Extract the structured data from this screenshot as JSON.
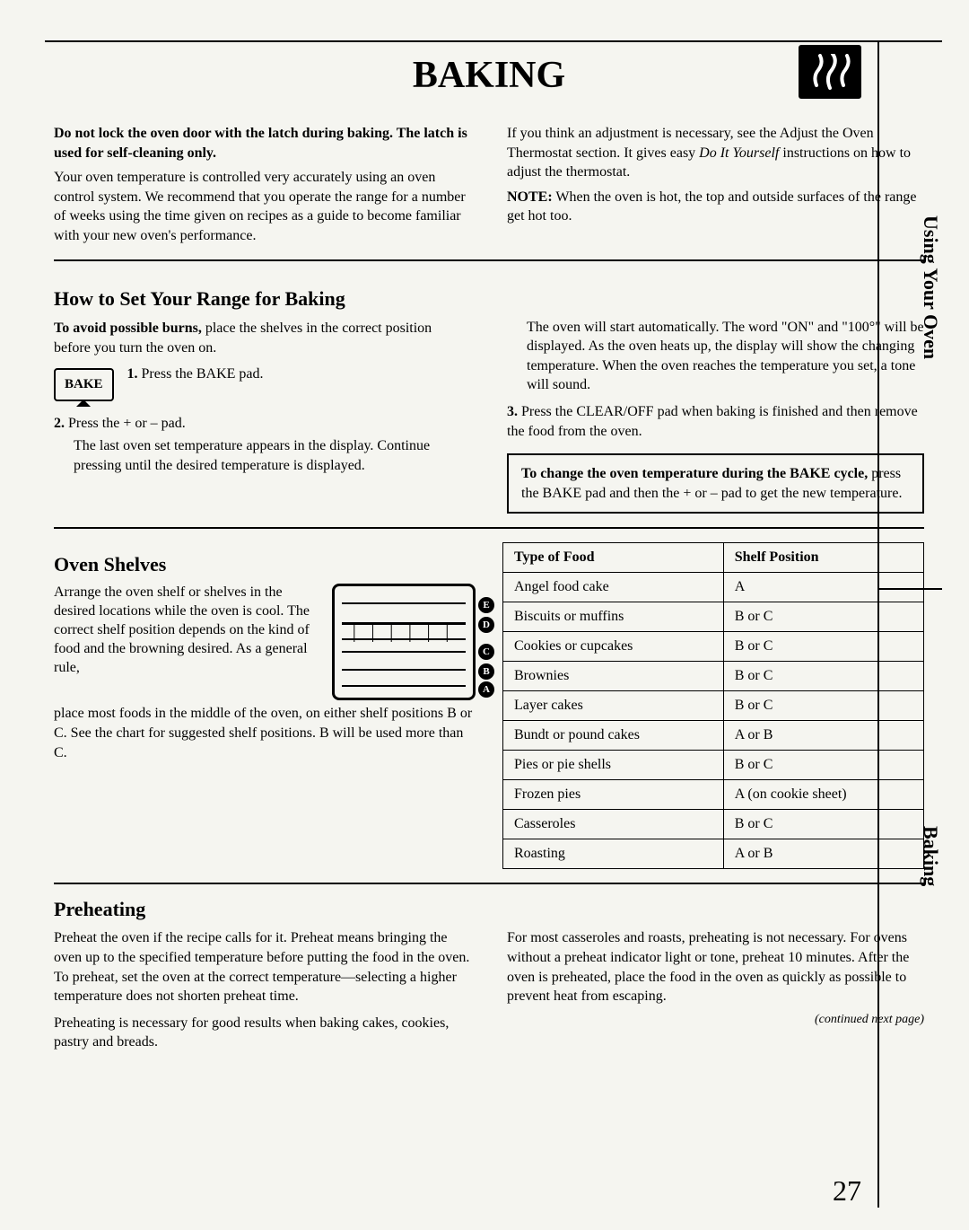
{
  "title": "BAKING",
  "side_tabs": {
    "tab1": "Using Your Oven",
    "tab2": "Baking"
  },
  "intro": {
    "left_bold": "Do not lock the oven door with the latch during baking. The latch is used for self-cleaning only.",
    "left_para": "Your oven temperature is controlled very accurately using an oven control system. We recommend that you operate the range for a number of weeks using the time given on recipes as a guide to become familiar with your new oven's performance.",
    "right_para1_prefix": "If you think an adjustment is necessary, see the Adjust the Oven Thermostat section. It gives easy ",
    "right_para1_italic": "Do It Yourself",
    "right_para1_suffix": " instructions on how to adjust the thermostat.",
    "right_note_label": "NOTE:",
    "right_note_text": " When the oven is hot, the top and outside surfaces of the range get hot too."
  },
  "howto": {
    "heading": "How to Set Your Range for Baking",
    "avoid_burns_bold": "To avoid possible burns,",
    "avoid_burns_rest": " place the shelves in the correct position before you turn the oven on.",
    "step1_num": "1.",
    "step1_text": " Press the BAKE pad.",
    "bake_label": "BAKE",
    "step2_num": "2.",
    "step2_text": " Press the + or – pad.",
    "step2_para": "The last oven set temperature appears in the display. Continue pressing until the desired temperature is displayed.",
    "right_para": "The oven will start automatically. The word \"ON\" and \"100°\" will be displayed. As the oven heats up, the display will show the changing temperature. When the oven reaches the temperature you set, a tone will sound.",
    "step3_num": "3.",
    "step3_text": " Press the CLEAR/OFF pad when baking is finished and then remove the food from the oven.",
    "change_temp_bold": "To change the oven temperature during the BAKE cycle,",
    "change_temp_rest": " press the BAKE pad and then the + or – pad to get the new temperature."
  },
  "shelves": {
    "heading": "Oven Shelves",
    "intro_text": "Arrange the oven shelf or shelves in the desired locations while the oven is cool. The correct shelf position depends on the kind of food and the browning desired. As a general rule,",
    "para": "place most foods in the middle of the oven, on either shelf positions B or C. See the chart for suggested shelf positions. B will be used more than C.",
    "labels": [
      "E",
      "D",
      "C",
      "B",
      "A"
    ],
    "table": {
      "header": [
        "Type of Food",
        "Shelf Position"
      ],
      "rows": [
        [
          "Angel food cake",
          "A"
        ],
        [
          "Biscuits or muffins",
          "B or C"
        ],
        [
          "Cookies or cupcakes",
          "B or C"
        ],
        [
          "Brownies",
          "B or C"
        ],
        [
          "Layer cakes",
          "B or C"
        ],
        [
          "Bundt or pound cakes",
          "A or B"
        ],
        [
          "Pies or pie shells",
          "B or C"
        ],
        [
          "Frozen pies",
          "A (on cookie sheet)"
        ],
        [
          "Casseroles",
          "B or C"
        ],
        [
          "Roasting",
          "A or B"
        ]
      ]
    }
  },
  "preheating": {
    "heading": "Preheating",
    "left_para1": "Preheat the oven if the recipe calls for it. Preheat means bringing the oven up to the specified temperature before putting the food in the oven. To preheat, set the oven at the correct temperature—selecting a higher temperature does not shorten preheat time.",
    "left_para2": "Preheating is necessary for good results when baking cakes, cookies, pastry and breads.",
    "right_para": "For most casseroles and roasts, preheating is not necessary. For ovens without a preheat indicator light or tone, preheat 10 minutes. After the oven is preheated, place the food in the oven as quickly as possible to prevent heat from escaping.",
    "continued": "(continued next page)"
  },
  "page_number": "27"
}
